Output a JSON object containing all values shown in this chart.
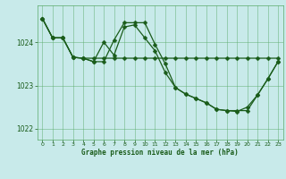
{
  "title": "Graphe pression niveau de la mer (hPa)",
  "background_color": "#c8eaea",
  "grid_color": "#5aaa6a",
  "line_color": "#1a5c1a",
  "xlim": [
    -0.5,
    23.5
  ],
  "ylim": [
    1021.75,
    1024.85
  ],
  "yticks": [
    1022,
    1023,
    1024
  ],
  "xticks": [
    0,
    1,
    2,
    3,
    4,
    5,
    6,
    7,
    8,
    9,
    10,
    11,
    12,
    13,
    14,
    15,
    16,
    17,
    18,
    19,
    20,
    21,
    22,
    23
  ],
  "s1": [
    1024.55,
    1024.1,
    1024.1,
    1023.65,
    1023.63,
    1023.63,
    1023.63,
    1023.63,
    1023.63,
    1023.63,
    1023.63,
    1023.63,
    1023.63,
    1023.63,
    1023.63,
    1023.63,
    1023.63,
    1023.63,
    1023.63,
    1023.63,
    1023.63,
    1023.63,
    1023.63,
    1023.63
  ],
  "s2": [
    1024.55,
    1024.1,
    1024.1,
    1023.65,
    1023.63,
    1023.55,
    1024.0,
    1023.7,
    1024.35,
    1024.4,
    1024.1,
    1023.8,
    1023.3,
    1022.95,
    1022.8,
    1022.7,
    1022.6,
    1022.45,
    1022.42,
    1022.4,
    1022.5,
    1022.78,
    1023.15,
    1023.55
  ],
  "s3": [
    1024.55,
    1024.1,
    1024.1,
    1023.65,
    1023.63,
    1023.55,
    1023.55,
    1024.05,
    1024.45,
    1024.45,
    1024.45,
    1023.95,
    1023.5,
    1022.95,
    1022.8,
    1022.7,
    1022.6,
    1022.45,
    1022.42,
    1022.42,
    1022.42,
    1022.78,
    1023.15,
    1023.55
  ]
}
